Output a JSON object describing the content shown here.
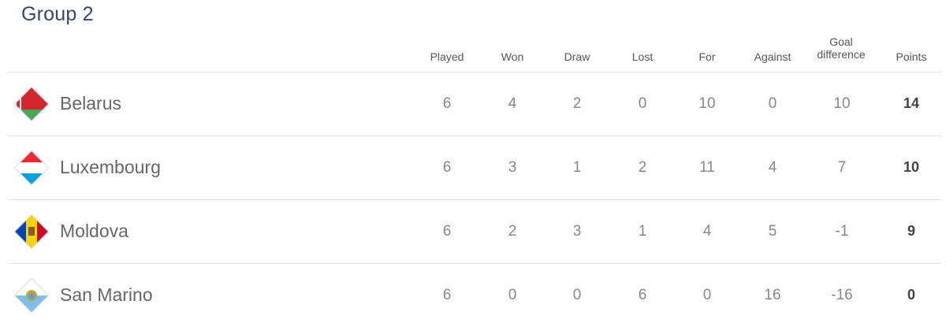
{
  "title": "Group 2",
  "columns": [
    "Played",
    "Won",
    "Draw",
    "Lost",
    "For",
    "Against",
    "Goal difference",
    "Points"
  ],
  "columns_split": {
    "gd1": "Goal",
    "gd2": "difference"
  },
  "rows": [
    {
      "team": "Belarus",
      "flag": "belarus-flag-icon",
      "stats": [
        "6",
        "4",
        "2",
        "0",
        "10",
        "0",
        "10",
        "14"
      ]
    },
    {
      "team": "Luxembourg",
      "flag": "luxembourg-flag-icon",
      "stats": [
        "6",
        "3",
        "1",
        "2",
        "11",
        "4",
        "7",
        "10"
      ]
    },
    {
      "team": "Moldova",
      "flag": "moldova-flag-icon",
      "stats": [
        "6",
        "2",
        "3",
        "1",
        "4",
        "5",
        "-1",
        "9"
      ]
    },
    {
      "team": "San Marino",
      "flag": "san-marino-flag-icon",
      "stats": [
        "6",
        "0",
        "0",
        "6",
        "0",
        "16",
        "-16",
        "0"
      ]
    }
  ]
}
